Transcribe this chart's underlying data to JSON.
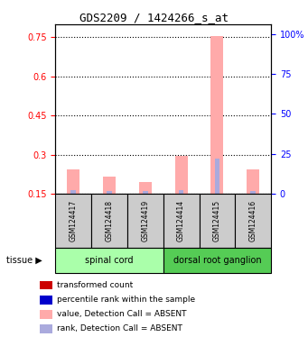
{
  "title": "GDS2209 / 1424266_s_at",
  "samples": [
    "GSM124417",
    "GSM124418",
    "GSM124419",
    "GSM124414",
    "GSM124415",
    "GSM124416"
  ],
  "groups": [
    {
      "label": "spinal cord",
      "color": "#aaffaa",
      "indices": [
        0,
        1,
        2
      ]
    },
    {
      "label": "dorsal root ganglion",
      "color": "#44cc44",
      "indices": [
        3,
        4,
        5
      ]
    }
  ],
  "pink_bar_values": [
    0.245,
    0.215,
    0.195,
    0.295,
    0.755,
    0.245
  ],
  "blue_bar_values": [
    0.165,
    0.16,
    0.16,
    0.165,
    0.285,
    0.16
  ],
  "left_yticks": [
    0.15,
    0.3,
    0.45,
    0.6,
    0.75
  ],
  "right_yticks": [
    0,
    25,
    50,
    75,
    100
  ],
  "ylim_left": [
    0.15,
    0.8
  ],
  "ylim_right": [
    0,
    106
  ],
  "tissue_label": "tissue",
  "legend": [
    {
      "label": "transformed count",
      "color": "#cc0000",
      "marker": "s"
    },
    {
      "label": "percentile rank within the sample",
      "color": "#0000cc",
      "marker": "s"
    },
    {
      "label": "value, Detection Call = ABSENT",
      "color": "#ffaaaa",
      "marker": "s"
    },
    {
      "label": "rank, Detection Call = ABSENT",
      "color": "#aaaaff",
      "marker": "s"
    }
  ],
  "bar_width": 0.35,
  "pink_color": "#ffaaaa",
  "blue_color": "#aaaadd",
  "bg_color": "#dddddd",
  "plot_bg": "#ffffff"
}
